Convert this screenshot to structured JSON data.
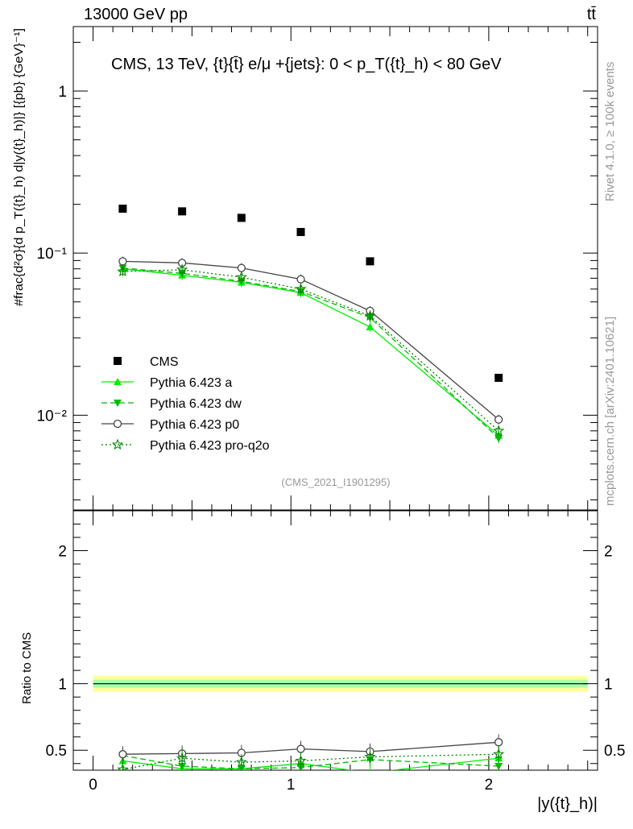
{
  "header": {
    "energy": "13000 GeV pp",
    "process": "tt̄",
    "title": "CMS, 13 TeV, {t}{t̄} e/μ +{jets}: 0 <  p_T({t}_h) < 80 GeV",
    "analysis": "(CMS_2021_I1901295)",
    "rivet": "Rivet 4.1.0, ≥ 100k events",
    "mcplots": "mcplots.cern.ch [arXiv:2401.10621]"
  },
  "chart_data": [
    {
      "type": "scatter",
      "panel": "main",
      "ylabel": "#frac{d²σ}{d p_T({t}_h) d|y({t}_h)|} [{pb} {GeV}⁻¹]",
      "yscale": "log",
      "ylim": [
        0.0026,
        2.5
      ],
      "xlim": [
        -0.1,
        2.55
      ],
      "yticks": [
        "10⁻²",
        "10⁻¹",
        "1"
      ],
      "x": [
        0.15,
        0.45,
        0.75,
        1.05,
        1.4,
        2.05
      ],
      "series": [
        {
          "name": "CMS",
          "color": "#000000",
          "marker": "square",
          "line": "none",
          "values": [
            0.188,
            0.181,
            0.165,
            0.135,
            0.089,
            0.017
          ]
        },
        {
          "name": "Pythia 6.423 a",
          "color": "#00ee00",
          "marker": "triangle-up",
          "line": "solid",
          "values": [
            0.08,
            0.073,
            0.066,
            0.057,
            0.035,
            0.0075
          ]
        },
        {
          "name": "Pythia 6.423 dw",
          "color": "#00bb00",
          "marker": "triangle-down",
          "line": "dashed",
          "values": [
            0.081,
            0.075,
            0.067,
            0.058,
            0.04,
            0.0072
          ]
        },
        {
          "name": "Pythia 6.423 p0",
          "color": "#444444",
          "marker": "circle-open",
          "line": "solid",
          "values": [
            0.089,
            0.087,
            0.081,
            0.069,
            0.044,
            0.0094
          ]
        },
        {
          "name": "Pythia 6.423 pro-q2o",
          "color": "#008800",
          "marker": "star-open",
          "line": "dotted",
          "values": [
            0.077,
            0.079,
            0.071,
            0.06,
            0.041,
            0.008
          ]
        }
      ]
    },
    {
      "type": "line",
      "panel": "ratio",
      "ylabel": "Ratio to CMS",
      "xlabel": "|y({t}_h)|",
      "ylim": [
        0.35,
        2.3
      ],
      "xlim": [
        -0.1,
        2.55
      ],
      "xticks": [
        "0",
        "1",
        "2"
      ],
      "yticks": [
        "0.5",
        "1",
        "2"
      ],
      "band": {
        "inner": [
          0.97,
          1.03
        ],
        "outer": [
          0.94,
          1.06
        ],
        "inner_color": "#aaffaa",
        "outer_color": "#ffff99"
      },
      "x": [
        0.15,
        0.45,
        0.75,
        1.05,
        1.4,
        2.05
      ],
      "series": [
        {
          "name": "Pythia 6.423 a",
          "values": [
            0.42,
            0.36,
            0.36,
            0.4,
            0.33,
            0.44
          ]
        },
        {
          "name": "Pythia 6.423 dw",
          "values": [
            0.46,
            0.38,
            0.36,
            0.37,
            0.43,
            0.38
          ]
        },
        {
          "name": "Pythia 6.423 p0",
          "values": [
            0.47,
            0.475,
            0.48,
            0.51,
            0.49,
            0.56
          ]
        },
        {
          "name": "Pythia 6.423 pro-q2o",
          "values": [
            0.355,
            0.44,
            0.41,
            0.42,
            0.45,
            0.47
          ]
        }
      ]
    }
  ]
}
